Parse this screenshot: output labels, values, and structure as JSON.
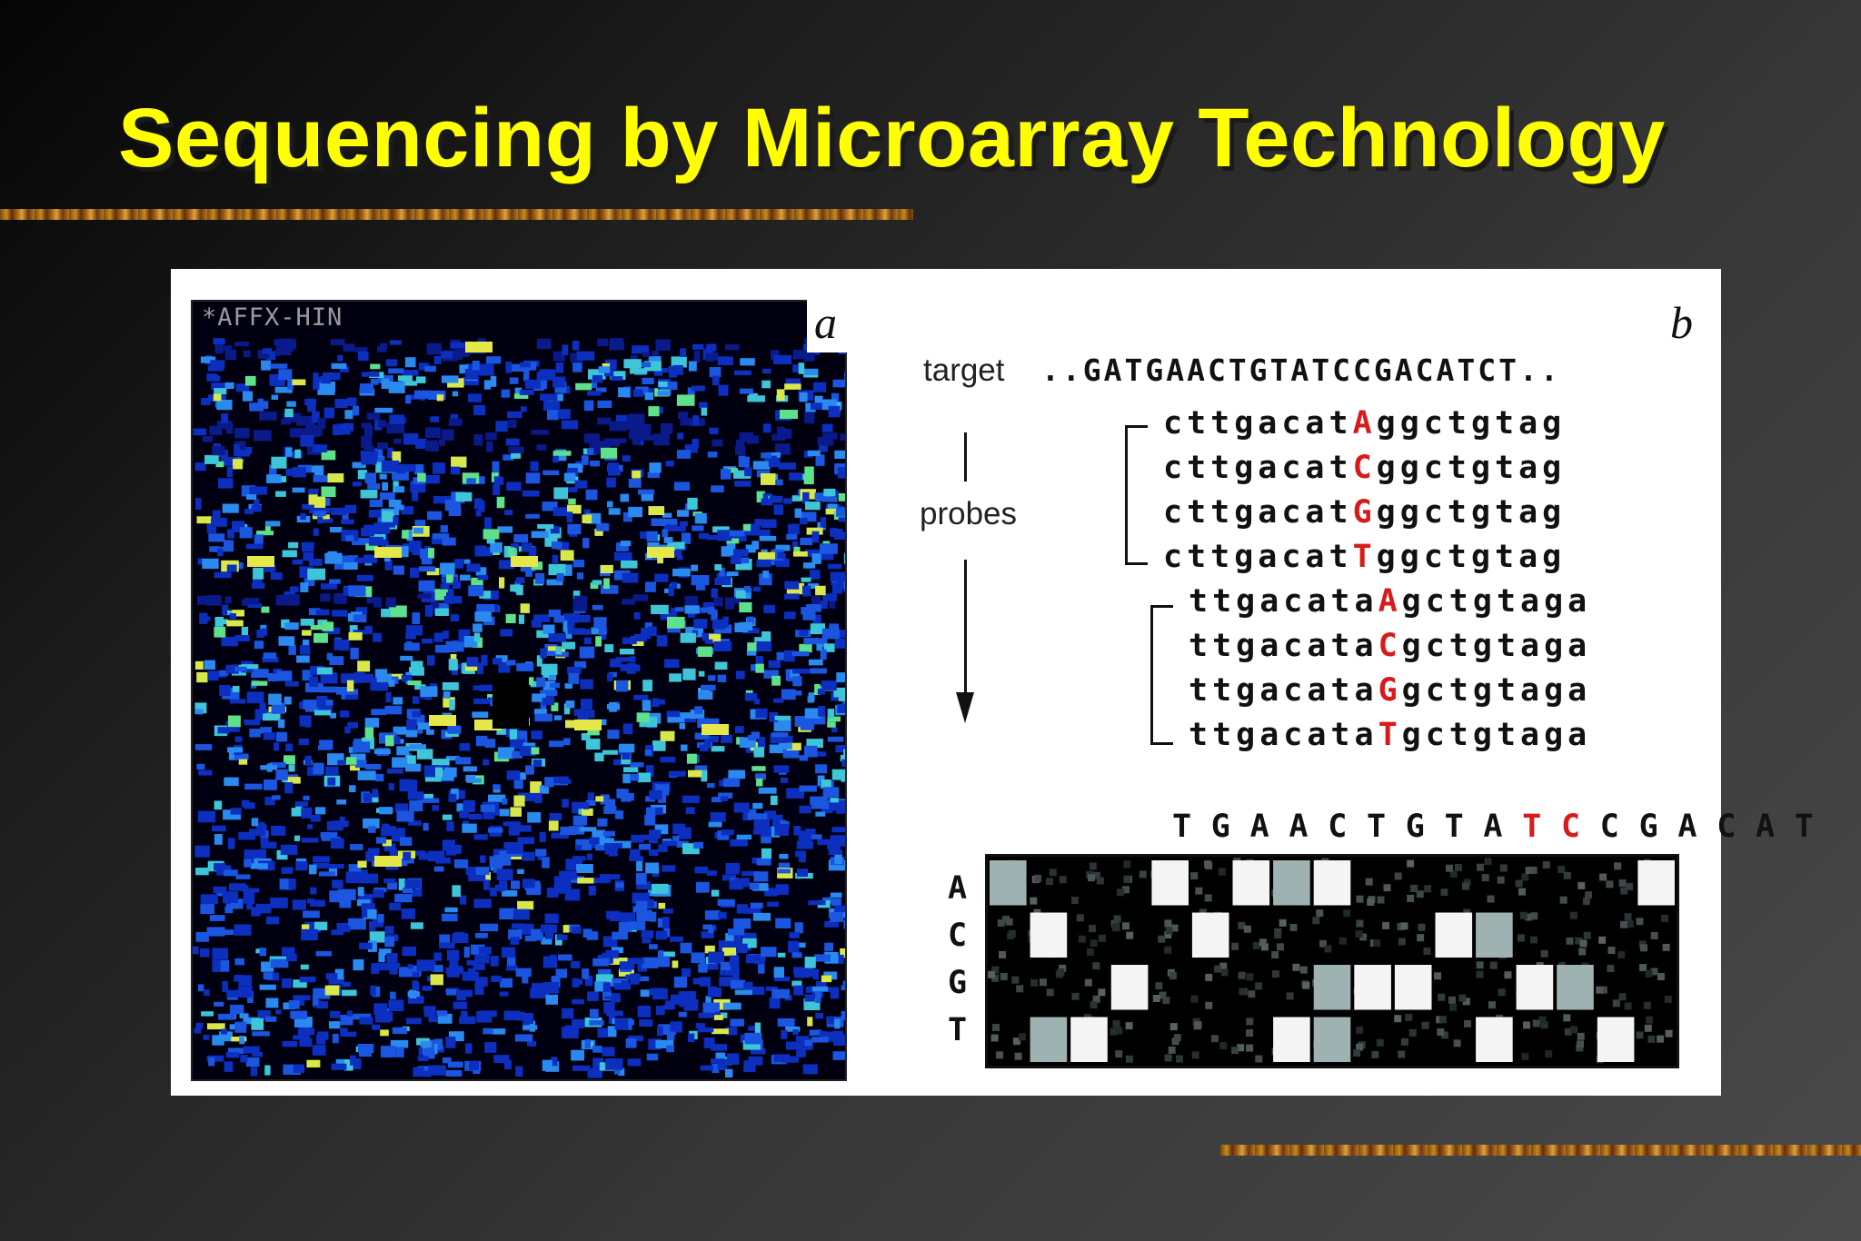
{
  "slide": {
    "title": "Sequencing by Microarray Technology"
  },
  "panel_a": {
    "label": "a",
    "chip_label": "*AFFX-HIN"
  },
  "panel_b": {
    "label": "b",
    "target_label": "target",
    "target_sequence": "..GATGAACTGTATCCGACATCT..",
    "probes_label": "probes",
    "probe_groups": [
      [
        {
          "prefix": "cttgacat",
          "sub": "A",
          "suffix": "ggctgtag"
        },
        {
          "prefix": "cttgacat",
          "sub": "C",
          "suffix": "ggctgtag"
        },
        {
          "prefix": "cttgacat",
          "sub": "G",
          "suffix": "ggctgtag"
        },
        {
          "prefix": "cttgacat",
          "sub": "T",
          "suffix": "ggctgtag"
        }
      ],
      [
        {
          "prefix": "ttgacata",
          "sub": "A",
          "suffix": "gctgtaga"
        },
        {
          "prefix": "ttgacata",
          "sub": "C",
          "suffix": "gctgtaga"
        },
        {
          "prefix": "ttgacata",
          "sub": "G",
          "suffix": "gctgtaga"
        },
        {
          "prefix": "ttgacata",
          "sub": "T",
          "suffix": "gctgtaga"
        }
      ]
    ],
    "read_sequence": [
      "T",
      "G",
      "A",
      "A",
      "C",
      "T",
      "G",
      "T",
      "A",
      "T",
      "C",
      "C",
      "G",
      "A",
      "C",
      "A",
      "T"
    ],
    "highlighted_positions": [
      9,
      10
    ],
    "row_bases": [
      "A",
      "C",
      "G",
      "T"
    ],
    "hybridization": {
      "bright": [
        [
          0,
          4
        ],
        [
          0,
          6
        ],
        [
          0,
          8
        ],
        [
          0,
          16
        ],
        [
          1,
          1
        ],
        [
          1,
          5
        ],
        [
          1,
          11
        ],
        [
          2,
          3
        ],
        [
          2,
          9
        ],
        [
          2,
          10
        ],
        [
          2,
          13
        ],
        [
          3,
          2
        ],
        [
          3,
          7
        ],
        [
          3,
          12
        ],
        [
          3,
          15
        ]
      ],
      "dim": [
        [
          0,
          0
        ],
        [
          0,
          7
        ],
        [
          1,
          12
        ],
        [
          2,
          8
        ],
        [
          2,
          14
        ],
        [
          3,
          1
        ],
        [
          3,
          8
        ]
      ]
    }
  },
  "colors": {
    "title": "#ffff00",
    "highlight": "#d91a1a"
  }
}
